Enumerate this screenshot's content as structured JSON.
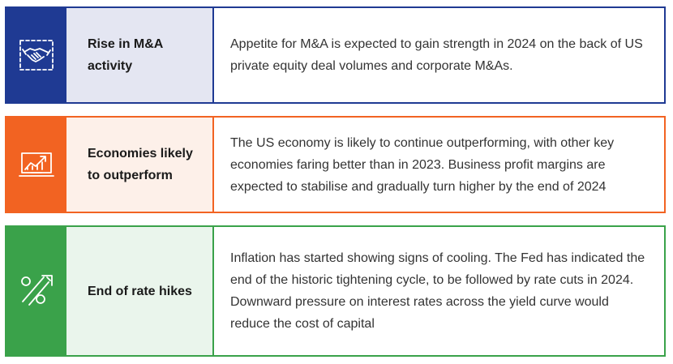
{
  "rows": [
    {
      "icon": "handshake-icon",
      "title": "Rise in M&A activity",
      "description": "Appetite for M&A is expected to gain strength in 2024 on the back of US private equity deal volumes and corporate M&As.",
      "accent": "#1f3a93",
      "tint": "#e4e6f2"
    },
    {
      "icon": "rising-chart-icon",
      "title": "Economies likely to outperform",
      "description": "The US economy is likely to continue outperforming, with other key economies faring better than in 2023. Business profit margins are expected to stabilise and gradually turn higher by the end of 2024",
      "accent": "#f26322",
      "tint": "#fdf0e9"
    },
    {
      "icon": "percent-up-arrow-icon",
      "title": "End of rate hikes",
      "description": "Inflation has started showing signs of cooling. The Fed has indicated the end of the historic tightening cycle, to be followed by rate cuts in 2024. Downward pressure on interest rates across the yield curve would reduce the cost of capital",
      "accent": "#3aa24a",
      "tint": "#eaf5ec"
    }
  ]
}
